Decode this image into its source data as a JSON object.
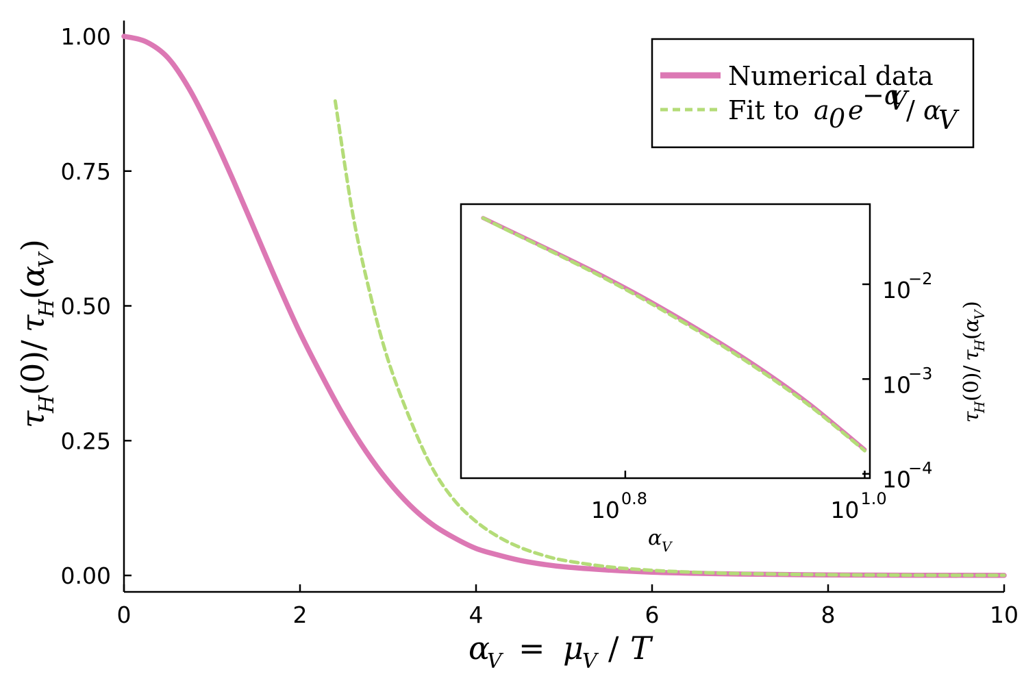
{
  "chart_data": [
    {
      "type": "line",
      "xlabel": "α_V = μ_V / T",
      "ylabel": "τ_H(0) / τ_H(α_V)",
      "xlim": [
        0,
        10
      ],
      "ylim": [
        -0.03,
        1.03
      ],
      "x_ticks": [
        0,
        2,
        4,
        6,
        8,
        10
      ],
      "x_tick_labels": [
        "0",
        "2",
        "4",
        "6",
        "8",
        "10"
      ],
      "y_ticks": [
        0,
        0.25,
        0.5,
        0.75,
        1.0
      ],
      "y_tick_labels": [
        "0.00",
        "0.25",
        "0.50",
        "0.75",
        "1.00"
      ],
      "grid": false,
      "legend_position": "top-right",
      "series": [
        {
          "name": "Numerical data",
          "color": "#dc78b4",
          "style": "solid",
          "x": [
            0,
            0.25,
            0.5,
            0.75,
            1.0,
            1.25,
            1.5,
            1.75,
            2.0,
            2.25,
            2.5,
            2.75,
            3.0,
            3.25,
            3.5,
            3.75,
            4.0,
            4.25,
            4.5,
            4.75,
            5.0,
            5.5,
            6.0,
            6.5,
            7.0,
            8.0,
            9.0,
            10.0
          ],
          "y": [
            1.0,
            0.99,
            0.96,
            0.9,
            0.82,
            0.73,
            0.635,
            0.54,
            0.45,
            0.37,
            0.295,
            0.23,
            0.175,
            0.13,
            0.095,
            0.07,
            0.05,
            0.038,
            0.028,
            0.021,
            0.016,
            0.01,
            0.006,
            0.004,
            0.0025,
            0.001,
            0.0004,
            0.0001
          ]
        },
        {
          "name": "Fit to a₀ e^{−α_V} / α_V",
          "color": "#b4dc78",
          "style": "dashed",
          "x": [
            2.4,
            2.6,
            2.8,
            3.0,
            3.25,
            3.5,
            3.75,
            4.0,
            4.25,
            4.5,
            4.75,
            5.0,
            5.5,
            6.0,
            6.5,
            7.0,
            8.0,
            9.0,
            10.0
          ],
          "y": [
            0.88,
            0.67,
            0.52,
            0.4,
            0.29,
            0.2,
            0.14,
            0.1,
            0.072,
            0.052,
            0.038,
            0.028,
            0.016,
            0.0095,
            0.0058,
            0.0035,
            0.0013,
            0.0005,
            0.0002
          ]
        }
      ]
    },
    {
      "type": "line",
      "xlabel": "α_V",
      "ylabel": "τ_H(0) / τ_H(α_V)",
      "log_x": true,
      "log_y": true,
      "xlim": [
        4.6,
        10.1
      ],
      "ylim": [
        9e-05,
        0.07
      ],
      "x_ticks": [
        6.3096,
        10.0
      ],
      "x_tick_labels": [
        {
          "base": "10",
          "exp": "0.8"
        },
        {
          "base": "10",
          "exp": "1.0"
        }
      ],
      "y_ticks": [
        0.01,
        0.001,
        0.0001
      ],
      "y_tick_labels": [
        {
          "base": "10",
          "exp": "−2"
        },
        {
          "base": "10",
          "exp": "−3"
        },
        {
          "base": "10",
          "exp": "−4"
        }
      ],
      "grid": false,
      "series": [
        {
          "name": "Numerical data",
          "color": "#dc78b4",
          "x": [
            4.8,
            5.0,
            5.5,
            6.0,
            6.5,
            7.0,
            7.5,
            8.0,
            8.5,
            9.0,
            9.5,
            10.0
          ],
          "y": [
            0.05,
            0.039,
            0.022,
            0.0128,
            0.0075,
            0.0044,
            0.0026,
            0.00155,
            0.00092,
            0.00054,
            0.00031,
            0.00018
          ]
        },
        {
          "name": "Fit to a₀ e^{−α_V} / α_V",
          "color": "#b4dc78",
          "x": [
            4.8,
            5.0,
            5.5,
            6.0,
            6.5,
            7.0,
            7.5,
            8.0,
            8.5,
            9.0,
            9.5,
            10.0
          ],
          "y": [
            0.05,
            0.0385,
            0.0215,
            0.0124,
            0.0072,
            0.0042,
            0.0025,
            0.00148,
            0.00088,
            0.00052,
            0.0003,
            0.000175
          ]
        }
      ]
    }
  ],
  "legend": {
    "items": [
      {
        "label": "Numerical data",
        "color": "#dc78b4"
      },
      {
        "label": "Fit to a₀ e^{−α_V} / α_V",
        "color": "#b4dc78"
      }
    ]
  }
}
